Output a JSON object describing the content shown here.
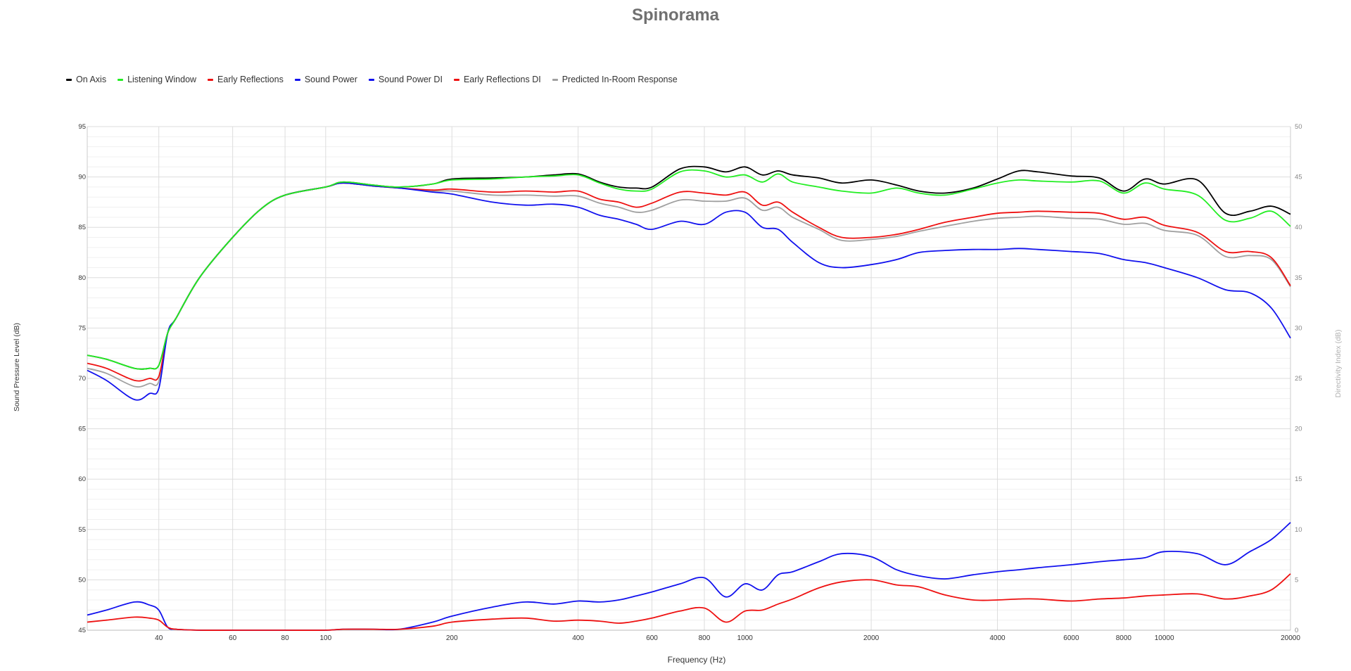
{
  "chart_data": {
    "type": "line",
    "title": "Spinorama",
    "xlabel": "Frequency (Hz)",
    "ylabel": "Sound Pressure Level (dB)",
    "y2label": "Directivity Index (dB)",
    "x_scale": "log",
    "xlim": [
      27,
      20000
    ],
    "ylim": [
      45,
      95
    ],
    "y2lim": [
      0,
      50
    ],
    "grid": true,
    "legend_position": "top-left",
    "x_ticks": [
      "40",
      "60",
      "80",
      "100",
      "200",
      "400",
      "600",
      "800",
      "1000",
      "2000",
      "4000",
      "6000",
      "8000",
      "10000",
      "20000"
    ],
    "y_ticks": [
      "45",
      "50",
      "55",
      "60",
      "65",
      "70",
      "75",
      "80",
      "85",
      "90",
      "95"
    ],
    "y2_ticks": [
      "0",
      "5",
      "10",
      "15",
      "20",
      "25",
      "30",
      "35",
      "40",
      "45",
      "50"
    ],
    "x": [
      27,
      30,
      35,
      38,
      40,
      42,
      44,
      50,
      60,
      70,
      80,
      100,
      110,
      130,
      150,
      180,
      200,
      250,
      300,
      350,
      400,
      450,
      500,
      550,
      600,
      700,
      800,
      900,
      1000,
      1100,
      1200,
      1300,
      1500,
      1700,
      2000,
      2300,
      2600,
      3000,
      3500,
      4000,
      4500,
      5000,
      6000,
      7000,
      8000,
      9000,
      10000,
      12000,
      14000,
      16000,
      18000,
      20000
    ],
    "series": [
      {
        "name": "On Axis",
        "color": "#000000",
        "axis": "left",
        "values": [
          72.3,
          71.9,
          71.0,
          71.0,
          71.3,
          74.5,
          76.0,
          80.0,
          84.0,
          86.8,
          88.2,
          89.0,
          89.5,
          89.2,
          89.0,
          89.3,
          89.8,
          89.9,
          90.0,
          90.2,
          90.3,
          89.5,
          89.0,
          88.9,
          89.0,
          90.8,
          91.0,
          90.5,
          91.0,
          90.2,
          90.6,
          90.2,
          89.9,
          89.4,
          89.7,
          89.2,
          88.6,
          88.4,
          88.9,
          89.8,
          90.6,
          90.5,
          90.1,
          89.9,
          88.6,
          89.8,
          89.3,
          89.7,
          86.4,
          86.6,
          87.1,
          86.3
        ]
      },
      {
        "name": "Listening Window",
        "color": "#22ee22",
        "axis": "left",
        "values": [
          72.3,
          71.9,
          71.0,
          71.0,
          71.3,
          74.5,
          76.0,
          80.0,
          84.0,
          86.8,
          88.2,
          89.0,
          89.5,
          89.2,
          89.0,
          89.3,
          89.7,
          89.8,
          90.0,
          90.1,
          90.2,
          89.4,
          88.8,
          88.6,
          88.8,
          90.5,
          90.6,
          90.0,
          90.2,
          89.5,
          90.3,
          89.5,
          89.0,
          88.6,
          88.4,
          88.9,
          88.4,
          88.2,
          88.8,
          89.4,
          89.7,
          89.6,
          89.5,
          89.6,
          88.4,
          89.4,
          88.8,
          88.2,
          85.7,
          85.9,
          86.6,
          85.1
        ]
      },
      {
        "name": "Early Reflections",
        "color": "#ee1111",
        "axis": "left",
        "values": [
          71.5,
          71.0,
          69.8,
          70.0,
          70.2,
          74.5,
          76.0,
          80.0,
          84.0,
          86.8,
          88.2,
          89.0,
          89.4,
          89.1,
          88.9,
          88.7,
          88.8,
          88.5,
          88.6,
          88.5,
          88.6,
          87.8,
          87.5,
          87.0,
          87.4,
          88.5,
          88.4,
          88.2,
          88.5,
          87.2,
          87.5,
          86.5,
          85.0,
          84.0,
          84.0,
          84.3,
          84.8,
          85.5,
          86.0,
          86.4,
          86.5,
          86.6,
          86.5,
          86.4,
          85.8,
          86.0,
          85.2,
          84.5,
          82.6,
          82.6,
          82.0,
          79.2
        ]
      },
      {
        "name": "Sound Power",
        "color": "#1111ee",
        "axis": "left",
        "values": [
          70.8,
          69.8,
          67.9,
          68.5,
          69.0,
          74.5,
          76.0,
          80.0,
          84.0,
          86.8,
          88.2,
          89.0,
          89.4,
          89.1,
          88.9,
          88.5,
          88.3,
          87.5,
          87.2,
          87.3,
          87.0,
          86.2,
          85.8,
          85.3,
          84.8,
          85.6,
          85.3,
          86.5,
          86.5,
          85.0,
          84.8,
          83.5,
          81.5,
          81.0,
          81.3,
          81.8,
          82.5,
          82.7,
          82.8,
          82.8,
          82.9,
          82.8,
          82.6,
          82.4,
          81.8,
          81.5,
          81.0,
          80.0,
          78.8,
          78.5,
          77.0,
          74.0
        ]
      },
      {
        "name": "Sound Power DI",
        "color": "#1111ee",
        "axis": "right",
        "values": [
          1.5,
          2.0,
          2.8,
          2.5,
          2.0,
          0.3,
          0.1,
          0.0,
          0.0,
          0.0,
          0.0,
          0.0,
          0.1,
          0.1,
          0.1,
          0.8,
          1.4,
          2.3,
          2.8,
          2.6,
          2.9,
          2.8,
          3.0,
          3.4,
          3.8,
          4.6,
          5.2,
          3.3,
          4.6,
          4.0,
          5.5,
          5.8,
          6.8,
          7.6,
          7.3,
          6.0,
          5.4,
          5.1,
          5.5,
          5.8,
          6.0,
          6.2,
          6.5,
          6.8,
          7.0,
          7.2,
          7.8,
          7.6,
          6.5,
          7.8,
          9.0,
          10.7
        ]
      },
      {
        "name": "Early Reflections DI",
        "color": "#ee1111",
        "axis": "right",
        "values": [
          0.8,
          1.0,
          1.3,
          1.2,
          1.0,
          0.3,
          0.1,
          0.0,
          0.0,
          0.0,
          0.0,
          0.0,
          0.1,
          0.1,
          0.1,
          0.4,
          0.8,
          1.1,
          1.2,
          0.9,
          1.0,
          0.9,
          0.7,
          0.9,
          1.2,
          1.9,
          2.2,
          0.8,
          1.9,
          2.0,
          2.6,
          3.1,
          4.2,
          4.8,
          5.0,
          4.5,
          4.3,
          3.5,
          3.0,
          3.0,
          3.1,
          3.1,
          2.9,
          3.1,
          3.2,
          3.4,
          3.5,
          3.6,
          3.1,
          3.4,
          4.0,
          5.6
        ]
      },
      {
        "name": "Predicted In-Room Response",
        "color": "#a0a0a0",
        "axis": "left",
        "values": [
          71.0,
          70.5,
          69.2,
          69.5,
          69.7,
          74.5,
          76.0,
          80.0,
          84.0,
          86.8,
          88.2,
          89.0,
          89.4,
          89.1,
          88.9,
          88.6,
          88.6,
          88.2,
          88.2,
          88.1,
          88.1,
          87.4,
          87.0,
          86.5,
          86.7,
          87.7,
          87.6,
          87.6,
          87.9,
          86.7,
          87.0,
          86.0,
          84.8,
          83.7,
          83.8,
          84.1,
          84.6,
          85.1,
          85.6,
          85.9,
          86.0,
          86.1,
          85.9,
          85.8,
          85.3,
          85.4,
          84.7,
          84.2,
          82.1,
          82.2,
          81.8,
          79.1
        ]
      }
    ]
  }
}
